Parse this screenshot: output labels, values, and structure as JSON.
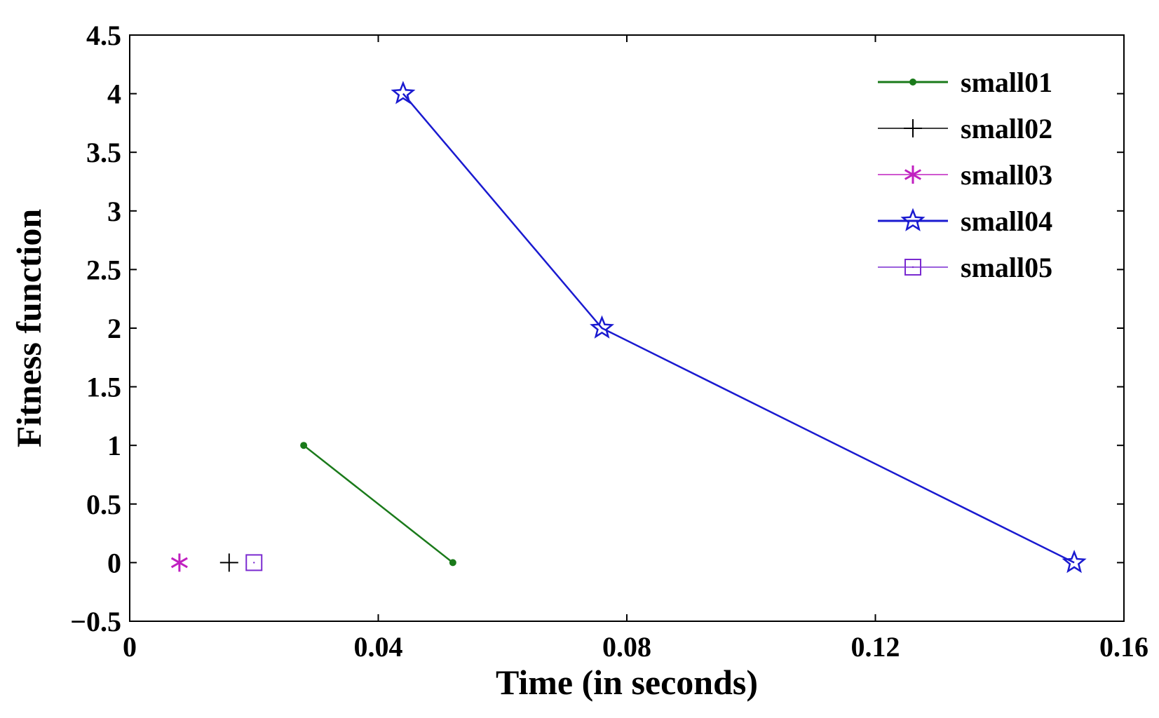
{
  "chart_data": {
    "type": "line",
    "title": "",
    "xlabel": "Time (in seconds)",
    "ylabel": "Fitness function",
    "xlim": [
      0,
      0.16
    ],
    "ylim": [
      -0.5,
      4.5
    ],
    "xticks": [
      0,
      0.04,
      0.08,
      0.12,
      0.16
    ],
    "xtick_labels": [
      "0",
      "0.04",
      "0.08",
      "0.12",
      "0.16"
    ],
    "yticks": [
      -0.5,
      0,
      0.5,
      1,
      1.5,
      2,
      2.5,
      3,
      3.5,
      4,
      4.5
    ],
    "ytick_labels": [
      "−0.5",
      "0",
      "0.5",
      "1",
      "1.5",
      "2",
      "2.5",
      "3",
      "3.5",
      "4",
      "4.5"
    ],
    "grid": false,
    "legend_position": "top-right",
    "series": [
      {
        "name": "small01",
        "color": "#1a7a1a",
        "marker": "dot",
        "x": [
          0.028,
          0.052
        ],
        "y": [
          1,
          0
        ]
      },
      {
        "name": "small02",
        "color": "#000000",
        "marker": "plus",
        "x": [
          0.016
        ],
        "y": [
          0
        ]
      },
      {
        "name": "small03",
        "color": "#c020c0",
        "marker": "star6",
        "x": [
          0.008
        ],
        "y": [
          0
        ]
      },
      {
        "name": "small04",
        "color": "#1a1ad0",
        "marker": "star5",
        "x": [
          0.044,
          0.076,
          0.152
        ],
        "y": [
          4,
          2,
          0
        ]
      },
      {
        "name": "small05",
        "color": "#7a2ad0",
        "marker": "square",
        "x": [
          0.02
        ],
        "y": [
          0
        ]
      }
    ]
  }
}
